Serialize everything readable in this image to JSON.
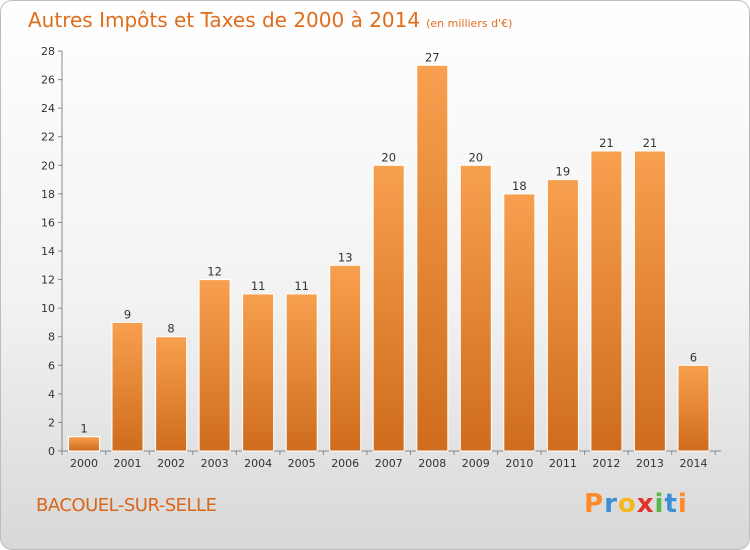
{
  "header": {
    "title": "Autres Impôts et Taxes de 2000 à 2014",
    "unit_note": "(en milliers d'€)"
  },
  "footer": {
    "city": "BACOUEL-SUR-SELLE",
    "logo_text": "Proxiti",
    "logo_colors": [
      "#ff8a2a",
      "#3b8fd6",
      "#f2b81c",
      "#e2322c",
      "#57b846",
      "#3b8fd6",
      "#ff8a2a"
    ]
  },
  "colors": {
    "bar_light": "#f7a04f",
    "bar_dark": "#cf6c1d",
    "axis": "#888888",
    "title": "#e06d1c"
  },
  "chart_data": {
    "type": "bar",
    "title": "Autres Impôts et Taxes de 2000 à 2014",
    "subtitle": "(en milliers d'€)",
    "xlabel": "",
    "ylabel": "",
    "categories": [
      "2000",
      "2001",
      "2002",
      "2003",
      "2004",
      "2005",
      "2006",
      "2007",
      "2008",
      "2009",
      "2010",
      "2011",
      "2012",
      "2013",
      "2014"
    ],
    "values": [
      1,
      9,
      8,
      12,
      11,
      11,
      13,
      20,
      27,
      20,
      18,
      19,
      21,
      21,
      6
    ],
    "data_labels": [
      "1",
      "9",
      "8",
      "12",
      "11",
      "11",
      "13",
      "20",
      "27",
      "20",
      "18",
      "19",
      "21",
      "21",
      "6"
    ],
    "ylim": [
      0,
      28
    ],
    "yticks": [
      0,
      2,
      4,
      6,
      8,
      10,
      12,
      14,
      16,
      18,
      20,
      22,
      24,
      26,
      28
    ],
    "grid": false,
    "legend": "none"
  }
}
